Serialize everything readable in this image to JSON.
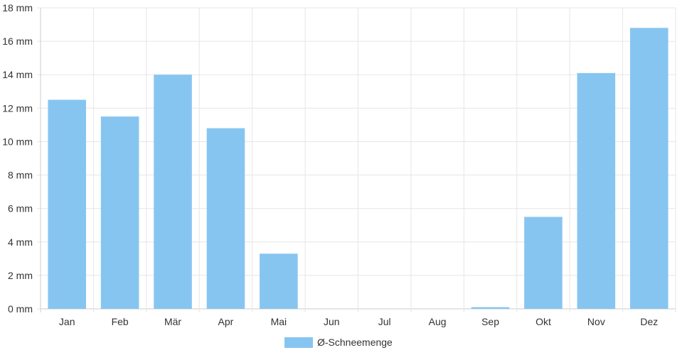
{
  "chart_data": {
    "type": "bar",
    "categories": [
      "Jan",
      "Feb",
      "Mär",
      "Apr",
      "Mai",
      "Jun",
      "Jul",
      "Aug",
      "Sep",
      "Okt",
      "Nov",
      "Dez"
    ],
    "series": [
      {
        "name": "Ø-Schneemenge",
        "values": [
          12.5,
          11.5,
          14.0,
          10.8,
          3.3,
          0,
          0,
          0,
          0.1,
          5.5,
          14.1,
          16.8
        ],
        "color": "#87c5f1"
      }
    ],
    "title": "",
    "xlabel": "",
    "ylabel": "",
    "ylim": [
      0,
      18
    ],
    "yticks": [
      "0 mm",
      "2 mm",
      "4 mm",
      "6 mm",
      "8 mm",
      "10 mm",
      "12 mm",
      "14 mm",
      "16 mm",
      "18 mm"
    ],
    "grid": true,
    "legend_position": "bottom-center",
    "colors": {
      "grid": "#e6e6e6",
      "axis": "#cccccc",
      "text": "#333333"
    }
  }
}
